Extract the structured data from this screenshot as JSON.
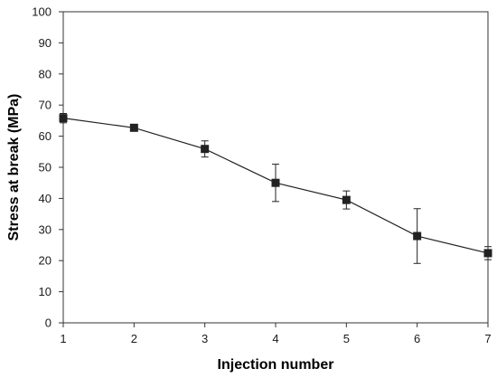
{
  "chart_data": {
    "type": "line",
    "title": "",
    "xlabel": "Injection number",
    "ylabel": "Stress at break (MPa)",
    "xlim": [
      1,
      7
    ],
    "ylim": [
      0,
      100
    ],
    "x_ticks": [
      "1",
      "2",
      "3",
      "4",
      "5",
      "6",
      "7"
    ],
    "y_ticks": [
      "0",
      "10",
      "20",
      "30",
      "40",
      "50",
      "60",
      "70",
      "80",
      "90",
      "100"
    ],
    "grid": false,
    "legend": "none",
    "marker": "square",
    "line_color": "#222222",
    "series": [
      {
        "x": [
          1,
          2,
          3,
          4,
          5,
          6,
          7
        ],
        "y": [
          65.8,
          62.7,
          55.9,
          45.0,
          39.5,
          27.9,
          22.4
        ],
        "error": [
          1.5,
          0.6,
          2.6,
          6.0,
          2.9,
          8.8,
          2.1
        ]
      }
    ]
  }
}
